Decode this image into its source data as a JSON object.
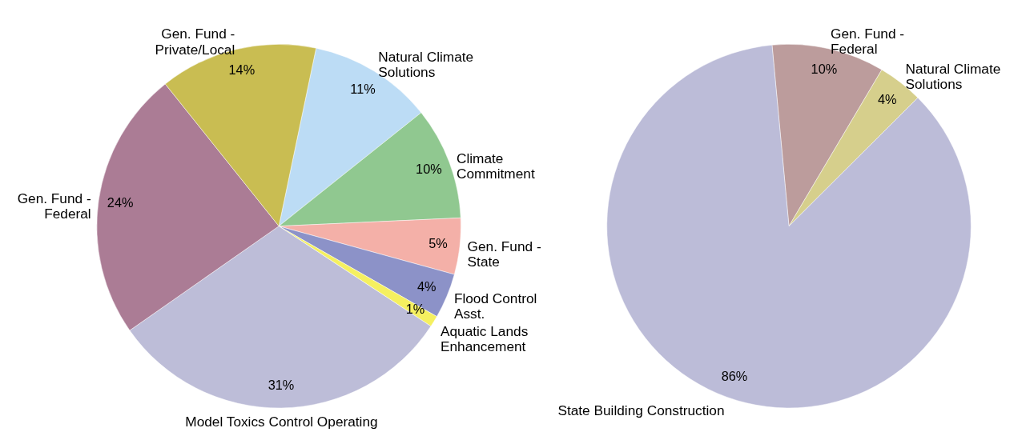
{
  "chart_data": [
    {
      "type": "pie",
      "categories": [
        "Natural Climate\nSolutions",
        "Climate\nCommitment",
        "Gen. Fund -\nState",
        "Flood Control\nAsst.",
        "Aquatic Lands\nEnhancement",
        "Model Toxics Control Operating",
        "Gen. Fund -\nFederal",
        "Gen. Fund -\nPrivate/Local"
      ],
      "values": [
        11,
        10,
        5,
        4,
        1,
        31,
        24,
        14
      ],
      "value_labels": [
        "11%",
        "10%",
        "5%",
        "4%",
        "1%",
        "31%",
        "24%",
        "14%"
      ],
      "colors": [
        "#bcdcf5",
        "#90c890",
        "#f4b0a8",
        "#8c92c8",
        "#f5f060",
        "#bdbdd8",
        "#ab7c95",
        "#c9bd52"
      ]
    },
    {
      "type": "pie",
      "categories": [
        "Gen. Fund -\nFederal",
        "Natural Climate\nSolutions",
        "State Building Construction"
      ],
      "values": [
        10,
        4,
        86
      ],
      "value_labels": [
        "10%",
        "4%",
        "86%"
      ],
      "colors": [
        "#bc9c9c",
        "#d6cf8c",
        "#bcbcd8"
      ]
    }
  ]
}
